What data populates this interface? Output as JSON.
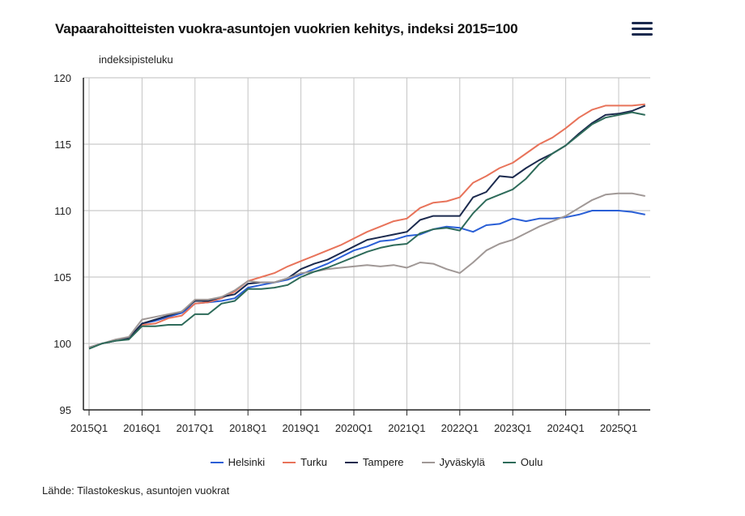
{
  "header": {
    "title": "Vapaarahoitteisten vuokra-asuntojen vuokrien kehitys, indeksi 2015=100",
    "menu_icon": "hamburger-menu-icon"
  },
  "source": "Lähde: Tilastokeskus, asuntojen vuokrat",
  "chart_data": {
    "type": "line",
    "title": "Vapaarahoitteisten vuokra-asuntojen vuokrien kehitys, indeksi 2015=100",
    "xlabel": "",
    "ylabel": "indeksipisteluku",
    "ylim": [
      95,
      120
    ],
    "yticks": [
      95,
      100,
      105,
      110,
      115,
      120
    ],
    "xtick_labels": [
      "2015Q1",
      "2016Q1",
      "2017Q1",
      "2018Q1",
      "2019Q1",
      "2020Q1",
      "2021Q1",
      "2022Q1",
      "2023Q1",
      "2024Q1",
      "2025Q1"
    ],
    "x_start": "2015Q1",
    "x_end": "2025Q3",
    "n_quarters": 43,
    "grid": true,
    "legend_position": "bottom",
    "series": [
      {
        "name": "Helsinki",
        "color": "#2a5fd6",
        "values": [
          99.7,
          100.0,
          100.2,
          100.4,
          101.5,
          101.7,
          102.0,
          102.3,
          103.0,
          103.1,
          103.2,
          103.4,
          104.2,
          104.4,
          104.6,
          104.8,
          105.2,
          105.6,
          106.0,
          106.5,
          107.0,
          107.3,
          107.7,
          107.8,
          108.1,
          108.2,
          108.6,
          108.8,
          108.7,
          108.4,
          108.9,
          109.0,
          109.4,
          109.2,
          109.4,
          109.4,
          109.5,
          109.7,
          110.0,
          110.0,
          110.0,
          109.9,
          109.7
        ]
      },
      {
        "name": "Turku",
        "color": "#e8735a",
        "values": [
          99.7,
          100.0,
          100.2,
          100.4,
          101.4,
          101.5,
          101.9,
          102.1,
          103.0,
          103.1,
          103.4,
          103.9,
          104.7,
          105.0,
          105.3,
          105.8,
          106.2,
          106.6,
          107.0,
          107.4,
          107.9,
          108.4,
          108.8,
          109.2,
          109.4,
          110.2,
          110.6,
          110.7,
          111.0,
          112.1,
          112.6,
          113.2,
          113.6,
          114.3,
          115.0,
          115.5,
          116.2,
          117.0,
          117.6,
          117.9,
          117.9,
          117.9,
          118.0
        ]
      },
      {
        "name": "Tampere",
        "color": "#1b2a4e",
        "values": [
          99.7,
          100.0,
          100.2,
          100.4,
          101.5,
          101.8,
          102.1,
          102.4,
          103.2,
          103.2,
          103.5,
          103.7,
          104.5,
          104.6,
          104.6,
          104.9,
          105.6,
          106.0,
          106.3,
          106.8,
          107.3,
          107.8,
          108.0,
          108.2,
          108.4,
          109.3,
          109.6,
          109.6,
          109.6,
          111.0,
          111.4,
          112.6,
          112.5,
          113.2,
          113.8,
          114.3,
          114.9,
          115.8,
          116.6,
          117.2,
          117.3,
          117.5,
          117.9
        ]
      },
      {
        "name": "Jyväskylä",
        "color": "#a09896",
        "values": [
          99.7,
          100.0,
          100.3,
          100.5,
          101.8,
          102.0,
          102.2,
          102.4,
          103.3,
          103.3,
          103.5,
          104.0,
          104.7,
          104.6,
          104.6,
          104.9,
          105.3,
          105.4,
          105.6,
          105.7,
          105.8,
          105.9,
          105.8,
          105.9,
          105.7,
          106.1,
          106.0,
          105.6,
          105.3,
          106.1,
          107.0,
          107.5,
          107.8,
          108.3,
          108.8,
          109.2,
          109.6,
          110.2,
          110.8,
          111.2,
          111.3,
          111.3,
          111.1
        ]
      },
      {
        "name": "Oulu",
        "color": "#2e6b5a",
        "values": [
          99.6,
          100.0,
          100.2,
          100.3,
          101.3,
          101.3,
          101.4,
          101.4,
          102.2,
          102.2,
          103.0,
          103.2,
          104.1,
          104.1,
          104.2,
          104.4,
          105.0,
          105.4,
          105.7,
          106.1,
          106.5,
          106.9,
          107.2,
          107.4,
          107.5,
          108.3,
          108.6,
          108.7,
          108.5,
          109.8,
          110.8,
          111.2,
          111.6,
          112.4,
          113.5,
          114.3,
          114.9,
          115.7,
          116.5,
          117.0,
          117.2,
          117.4,
          117.2
        ]
      }
    ]
  }
}
